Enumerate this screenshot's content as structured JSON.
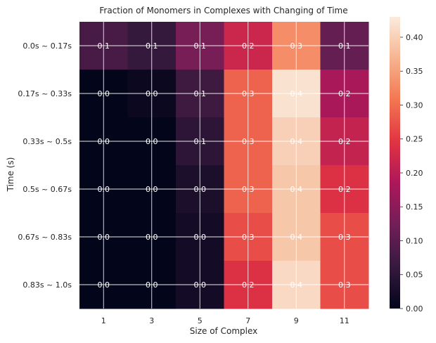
{
  "chart_data": {
    "type": "heatmap",
    "title": "Fraction of Monomers in Complexes with Changing of Time",
    "xlabel": "Size of Complex",
    "ylabel": "Time (s)",
    "x_categories": [
      "1",
      "3",
      "5",
      "7",
      "9",
      "11"
    ],
    "y_categories": [
      "0.0s ~ 0.17s",
      "0.17s ~ 0.33s",
      "0.33s ~ 0.5s",
      "0.5s ~ 0.67s",
      "0.67s ~ 0.83s",
      "0.83s ~ 1.0s"
    ],
    "values": [
      [
        0.08,
        0.06,
        0.13,
        0.22,
        0.33,
        0.11
      ],
      [
        0.0,
        0.01,
        0.07,
        0.29,
        0.42,
        0.18
      ],
      [
        0.0,
        0.0,
        0.05,
        0.29,
        0.4,
        0.21
      ],
      [
        0.0,
        0.0,
        0.03,
        0.29,
        0.39,
        0.24
      ],
      [
        0.0,
        0.0,
        0.02,
        0.27,
        0.39,
        0.27
      ],
      [
        0.0,
        0.0,
        0.02,
        0.24,
        0.41,
        0.27
      ]
    ],
    "cell_labels": [
      [
        "0.1",
        "0.1",
        "0.1",
        "0.2",
        "0.3",
        "0.1"
      ],
      [
        "0.0",
        "0.0",
        "0.1",
        "0.3",
        "0.4",
        "0.2"
      ],
      [
        "0.0",
        "0.0",
        "0.1",
        "0.3",
        "0.4",
        "0.2"
      ],
      [
        "0.0",
        "0.0",
        "0.0",
        "0.3",
        "0.4",
        "0.2"
      ],
      [
        "0.0",
        "0.0",
        "0.0",
        "0.3",
        "0.4",
        "0.3"
      ],
      [
        "0.0",
        "0.0",
        "0.0",
        "0.2",
        "0.4",
        "0.3"
      ]
    ],
    "colorbar": {
      "min": 0.0,
      "max": 0.43,
      "ticks": [
        "0.00",
        "0.05",
        "0.10",
        "0.15",
        "0.20",
        "0.25",
        "0.30",
        "0.35",
        "0.40"
      ],
      "colormap": "rocket",
      "stops": [
        "#03051a",
        "#36193e",
        "#701f57",
        "#ad1759",
        "#e13342",
        "#f37651",
        "#f6b48f",
        "#faebdd"
      ]
    },
    "grid": true
  }
}
